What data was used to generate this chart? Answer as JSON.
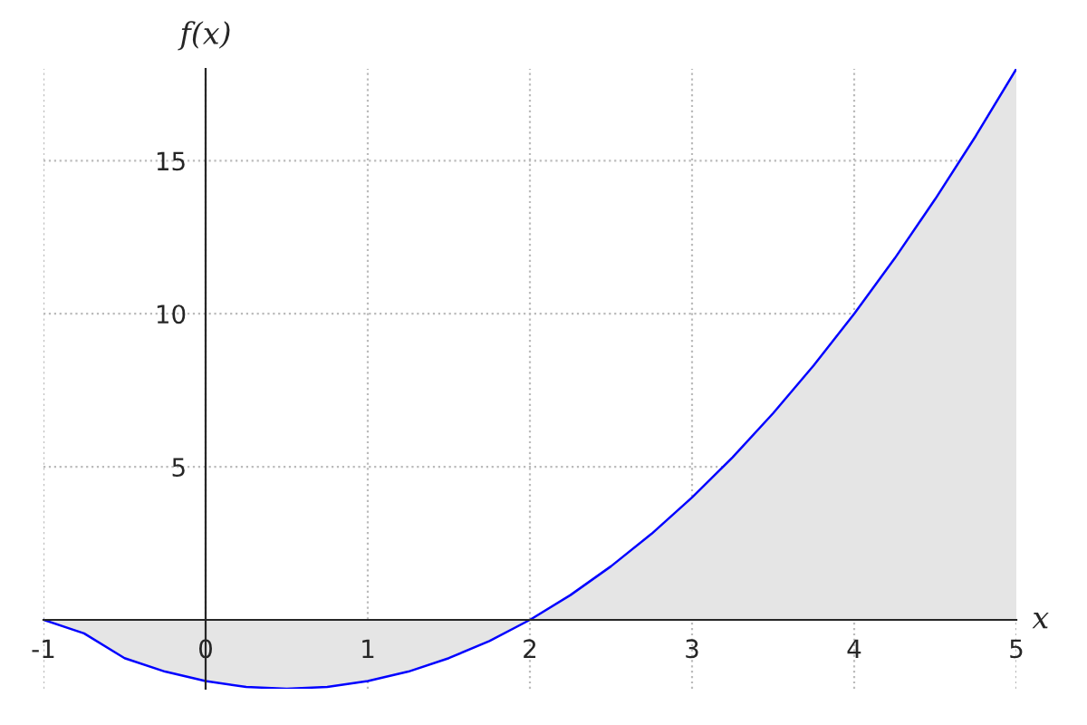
{
  "chart_data": {
    "type": "area",
    "xlabel": "x",
    "ylabel": "f(x)",
    "series": [
      {
        "color": "#0000ff",
        "x": [
          -1,
          -0.75,
          -0.5,
          -0.25,
          0,
          0.25,
          0.5,
          0.75,
          1,
          1.25,
          1.5,
          1.75,
          2,
          2.25,
          2.5,
          2.75,
          3,
          3.25,
          3.5,
          3.75,
          4,
          4.25,
          4.5,
          4.75,
          5
        ],
        "values": [
          0,
          -0.44,
          -1.25,
          -1.69,
          -2,
          -2.19,
          -2.25,
          -2.19,
          -2,
          -1.69,
          -1.25,
          -0.69,
          0,
          0.81,
          1.75,
          2.81,
          4,
          5.31,
          6.75,
          8.31,
          10,
          11.81,
          13.75,
          15.81,
          18
        ]
      }
    ],
    "xlim": [
      -1,
      5
    ],
    "ylim": [
      -2.25,
      18
    ],
    "xticks": [
      -1,
      0,
      1,
      2,
      3,
      4,
      5
    ],
    "yticks": [
      5,
      10,
      15
    ],
    "grid": true,
    "line_style": "solid",
    "marker": "none"
  }
}
